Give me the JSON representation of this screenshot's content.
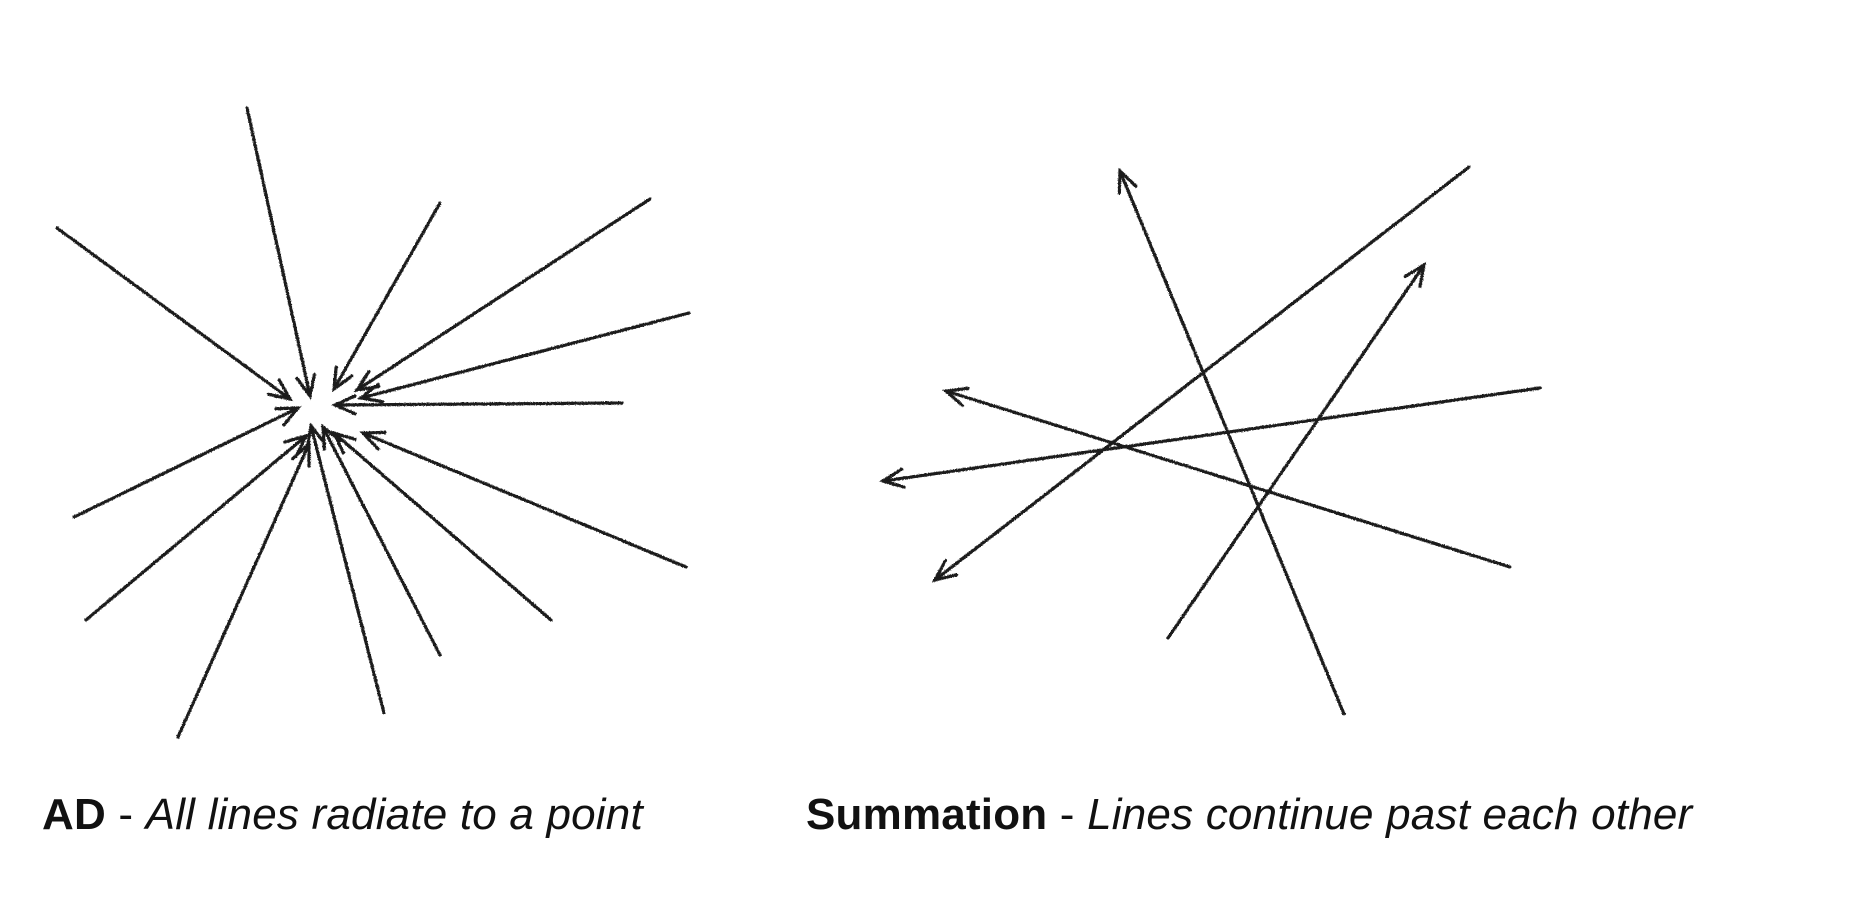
{
  "panels": {
    "ad": {
      "term": "AD",
      "separator": " - ",
      "description": "All lines radiate to a point"
    },
    "summation": {
      "term": "Summation",
      "separator": " - ",
      "description": "Lines continue past each other"
    }
  },
  "colors": {
    "line": "#1a1a1a",
    "background": "#ffffff"
  }
}
